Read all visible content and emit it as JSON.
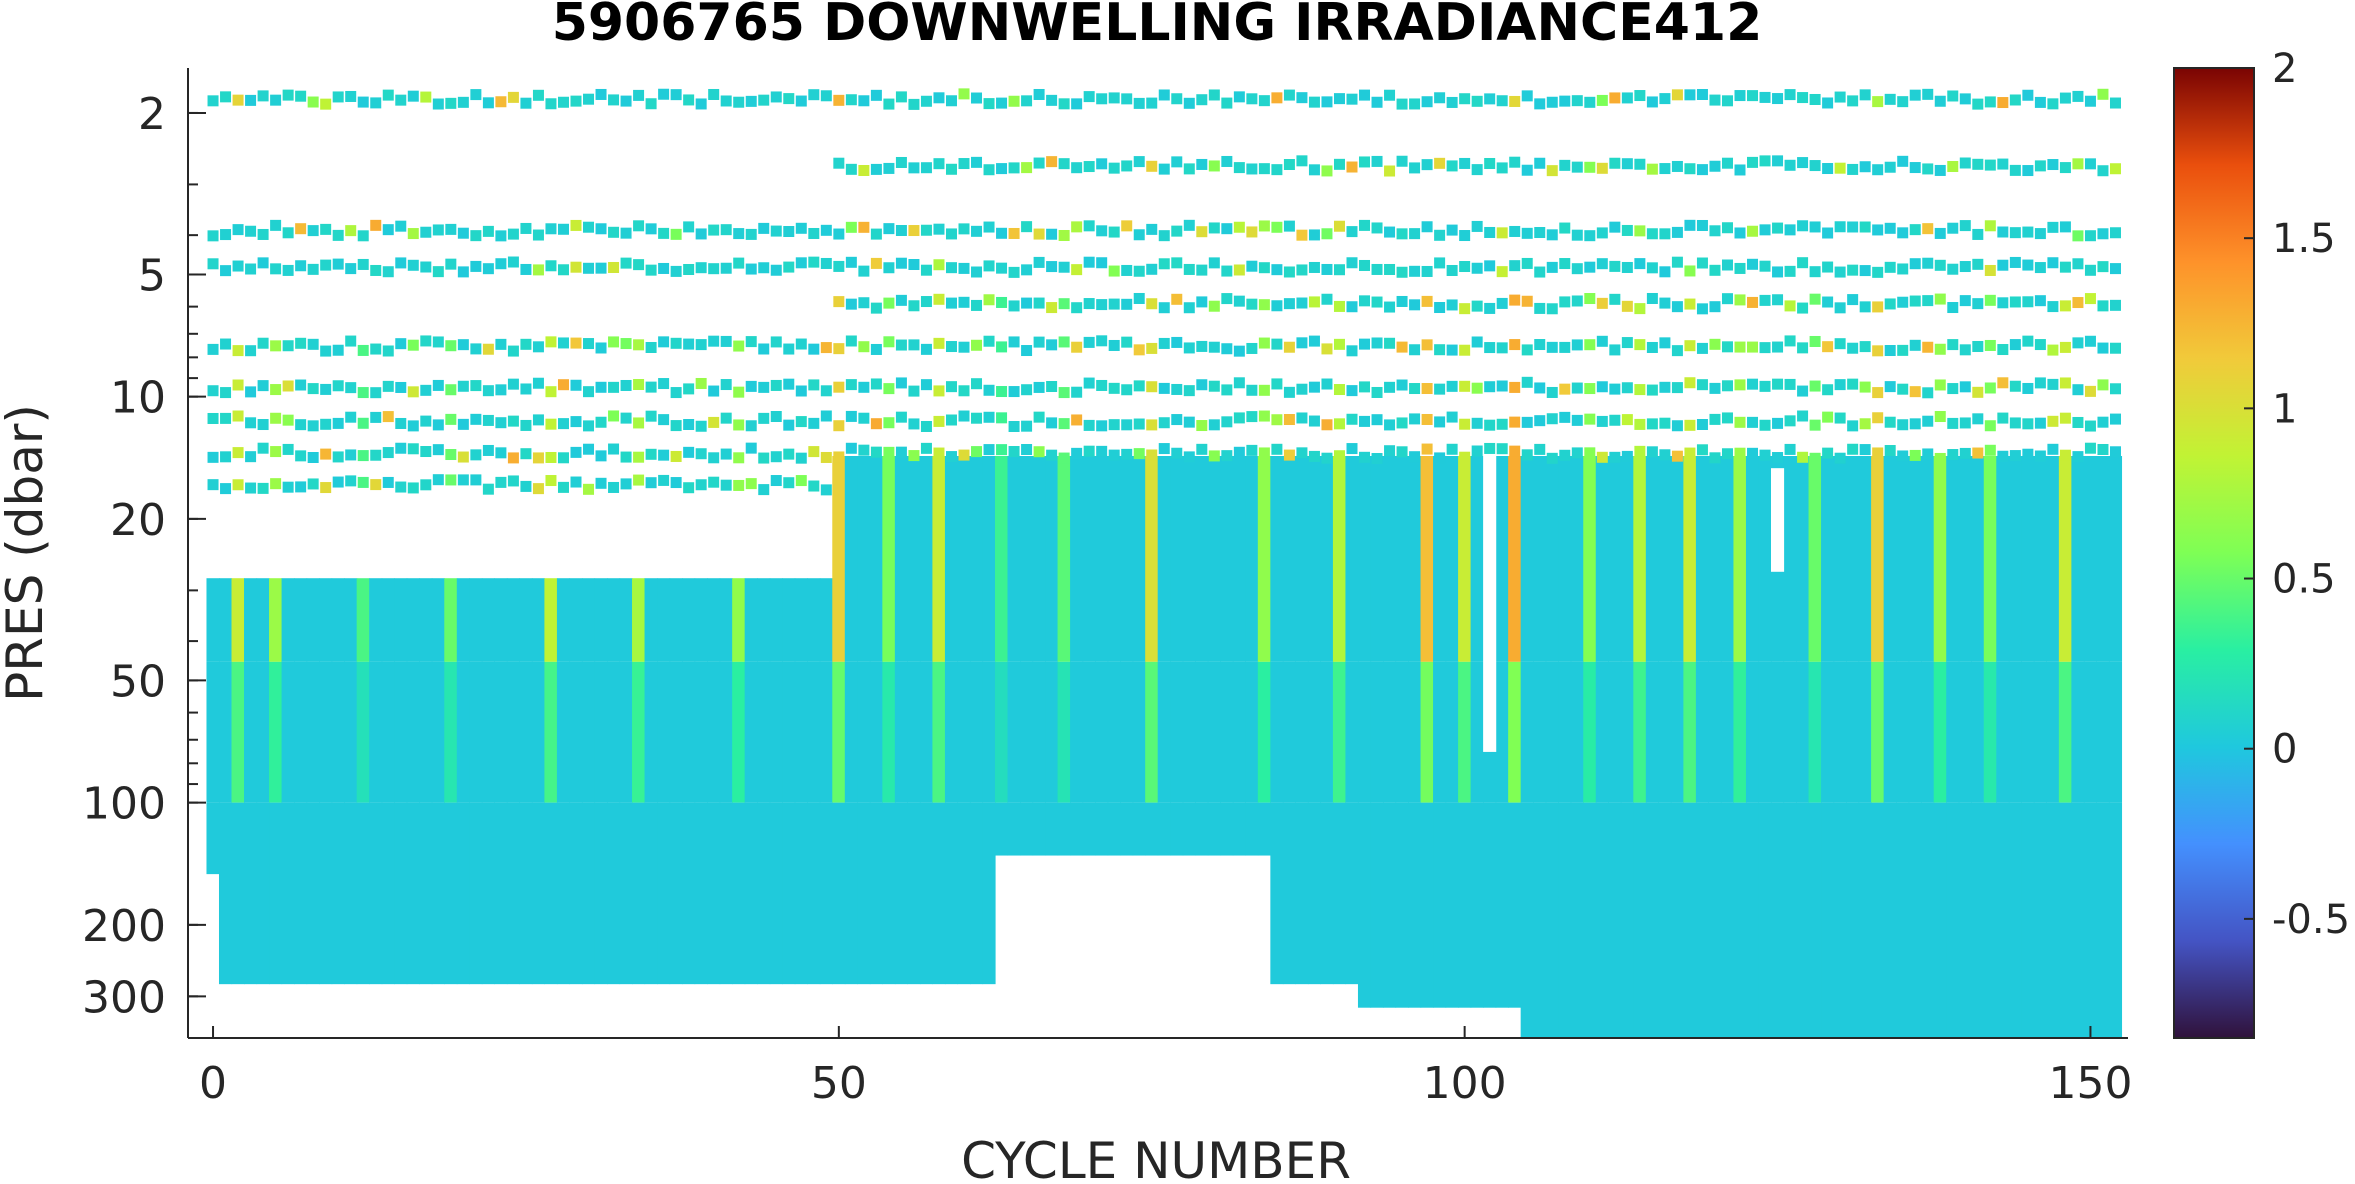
{
  "chart_data": {
    "type": "heatmap",
    "title": "5906765  DOWNWELLING IRRADIANCE412",
    "xlabel": "CYCLE NUMBER",
    "ylabel": "PRES (dbar)",
    "xlim": [
      -2,
      153
    ],
    "ylim": [
      1.55,
      380
    ],
    "y_scale": "log",
    "y_reversed": true,
    "xticks": [
      0,
      50,
      100,
      150
    ],
    "xtick_labels": [
      "0",
      "50",
      "100",
      "150"
    ],
    "yticks": [
      2,
      5,
      10,
      20,
      50,
      100,
      200,
      300
    ],
    "ytick_labels": [
      "2",
      "5",
      "10",
      "20",
      "50",
      "100",
      "200",
      "300"
    ],
    "colorbar": {
      "colormap": "turbo",
      "clim": [
        -0.85,
        2.0
      ],
      "ticks": [
        -0.5,
        0,
        0.5,
        1,
        1.5,
        2
      ],
      "tick_labels": [
        "-0.5",
        "0",
        "0.5",
        "1",
        "1.5",
        "2"
      ]
    },
    "cycles": {
      "first": 0,
      "last": 152
    },
    "surface_level_pressures": [
      1.85,
      2.7,
      3.9,
      4.8,
      5.9,
      7.5,
      9.5,
      11.5,
      13.8,
      16.5
    ],
    "dense_profile_start_pressure": {
      "cycles_0_49": 28,
      "cycles_50_152": 14
    },
    "max_pressure_by_cycle_range": [
      {
        "from": 0,
        "to": 0,
        "max_pres": 150
      },
      {
        "from": 1,
        "to": 62,
        "max_pres": 280
      },
      {
        "from": 63,
        "to": 84,
        "max_pres": 135
      },
      {
        "from": 85,
        "to": 91,
        "max_pres": 280
      },
      {
        "from": 92,
        "to": 104,
        "max_pres": 320
      },
      {
        "from": 105,
        "to": 152,
        "max_pres": 380
      }
    ],
    "gaps": [
      {
        "cycle": 102,
        "pres_from": 14,
        "pres_to": 75
      },
      {
        "cycle": 125,
        "pres_from": 15,
        "pres_to": 27
      }
    ],
    "high_value_cycles": [
      {
        "cycle": 2,
        "value": 0.9
      },
      {
        "cycle": 5,
        "value": 0.7
      },
      {
        "cycle": 12,
        "value": 0.4
      },
      {
        "cycle": 19,
        "value": 0.5
      },
      {
        "cycle": 27,
        "value": 0.85
      },
      {
        "cycle": 34,
        "value": 0.75
      },
      {
        "cycle": 42,
        "value": 0.65
      },
      {
        "cycle": 50,
        "value": 1.1
      },
      {
        "cycle": 54,
        "value": 0.55
      },
      {
        "cycle": 58,
        "value": 0.9
      },
      {
        "cycle": 63,
        "value": 0.35
      },
      {
        "cycle": 68,
        "value": 0.45
      },
      {
        "cycle": 75,
        "value": 1.0
      },
      {
        "cycle": 84,
        "value": 0.65
      },
      {
        "cycle": 90,
        "value": 0.8
      },
      {
        "cycle": 97,
        "value": 1.2
      },
      {
        "cycle": 100,
        "value": 0.9
      },
      {
        "cycle": 104,
        "value": 1.3
      },
      {
        "cycle": 110,
        "value": 0.6
      },
      {
        "cycle": 114,
        "value": 0.8
      },
      {
        "cycle": 118,
        "value": 0.9
      },
      {
        "cycle": 122,
        "value": 0.7
      },
      {
        "cycle": 128,
        "value": 0.5
      },
      {
        "cycle": 133,
        "value": 1.1
      },
      {
        "cycle": 138,
        "value": 0.65
      },
      {
        "cycle": 142,
        "value": 0.55
      },
      {
        "cycle": 148,
        "value": 0.9
      }
    ]
  }
}
